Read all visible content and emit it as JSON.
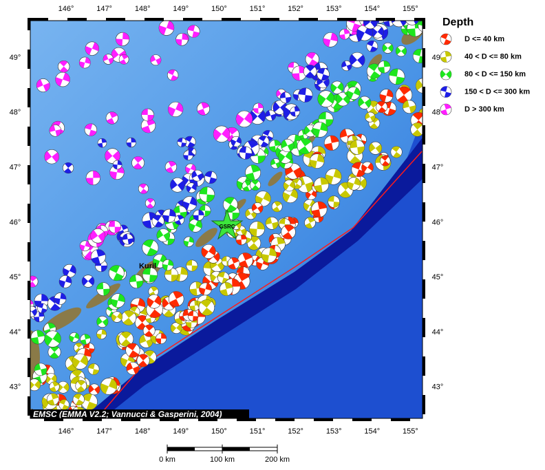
{
  "legend": {
    "title": "Depth",
    "items": [
      {
        "label": "D <= 40 km",
        "color": "#ff2a00"
      },
      {
        "label": "40 < D <= 80 km",
        "color": "#c8c800"
      },
      {
        "label": "80 < D <= 150 km",
        "color": "#1ee61e"
      },
      {
        "label": "150 < D <= 300 km",
        "color": "#1e1ee6"
      },
      {
        "label": "D > 300 km",
        "color": "#ff1eff"
      }
    ]
  },
  "map": {
    "lon_labels": [
      "146°",
      "147°",
      "148°",
      "149°",
      "150°",
      "151°",
      "152°",
      "153°",
      "154°",
      "155°"
    ],
    "lat_labels": [
      "49°",
      "48°",
      "47°",
      "46°",
      "45°",
      "44°",
      "43°"
    ],
    "place_label": "Kuril",
    "station_label": "GSRC",
    "credit": "EMSC (EMMA V2.2; Vannucci & Gasperini, 2004)"
  },
  "scale_bar": {
    "labels": [
      "0 km",
      "100 km",
      "200 km"
    ]
  }
}
